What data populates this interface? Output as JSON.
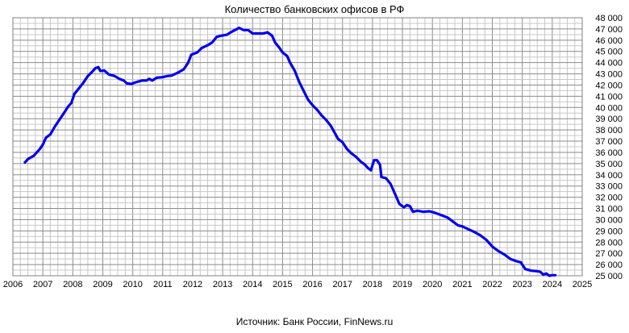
{
  "chart_data": {
    "type": "line",
    "title": "Количество банковских офисов в РФ",
    "source": "Источник: Банк России, FinNews.ru",
    "xlabel": "",
    "ylabel": "",
    "xlim": [
      2006,
      2025
    ],
    "ylim": [
      25000,
      48000
    ],
    "grid": true,
    "x_ticks": [
      "2006",
      "2007",
      "2008",
      "2009",
      "2010",
      "2011",
      "2012",
      "2013",
      "2014",
      "2015",
      "2016",
      "2017",
      "2018",
      "2019",
      "2020",
      "2021",
      "2022",
      "2023",
      "2024",
      "2025"
    ],
    "y_ticks": [
      "25 000",
      "26 000",
      "27 000",
      "28 000",
      "29 000",
      "30 000",
      "31 000",
      "32 000",
      "33 000",
      "34 000",
      "35 000",
      "36 000",
      "37 000",
      "38 000",
      "39 000",
      "40 000",
      "41 000",
      "42 000",
      "43 000",
      "44 000",
      "45 000",
      "46 000",
      "47 000",
      "48 000"
    ],
    "series": [
      {
        "color": "#0000ee",
        "points": [
          [
            2006.4,
            35100
          ],
          [
            2006.5,
            35400
          ],
          [
            2006.7,
            35700
          ],
          [
            2006.9,
            36300
          ],
          [
            2007.0,
            36700
          ],
          [
            2007.1,
            37300
          ],
          [
            2007.25,
            37600
          ],
          [
            2007.4,
            38300
          ],
          [
            2007.55,
            38900
          ],
          [
            2007.7,
            39500
          ],
          [
            2007.85,
            40100
          ],
          [
            2007.95,
            40400
          ],
          [
            2008.05,
            41200
          ],
          [
            2008.2,
            41700
          ],
          [
            2008.35,
            42200
          ],
          [
            2008.5,
            42800
          ],
          [
            2008.65,
            43200
          ],
          [
            2008.75,
            43500
          ],
          [
            2008.85,
            43600
          ],
          [
            2008.92,
            43250
          ],
          [
            2009.05,
            43300
          ],
          [
            2009.2,
            42950
          ],
          [
            2009.4,
            42800
          ],
          [
            2009.55,
            42550
          ],
          [
            2009.7,
            42400
          ],
          [
            2009.8,
            42150
          ],
          [
            2009.95,
            42100
          ],
          [
            2010.1,
            42250
          ],
          [
            2010.3,
            42400
          ],
          [
            2010.45,
            42400
          ],
          [
            2010.55,
            42550
          ],
          [
            2010.65,
            42400
          ],
          [
            2010.8,
            42650
          ],
          [
            2011.0,
            42700
          ],
          [
            2011.15,
            42800
          ],
          [
            2011.3,
            42850
          ],
          [
            2011.5,
            43100
          ],
          [
            2011.7,
            43400
          ],
          [
            2011.85,
            44000
          ],
          [
            2011.95,
            44700
          ],
          [
            2012.15,
            44900
          ],
          [
            2012.3,
            45300
          ],
          [
            2012.5,
            45550
          ],
          [
            2012.65,
            45800
          ],
          [
            2012.8,
            46300
          ],
          [
            2012.95,
            46400
          ],
          [
            2013.15,
            46500
          ],
          [
            2013.3,
            46750
          ],
          [
            2013.45,
            46950
          ],
          [
            2013.55,
            47100
          ],
          [
            2013.7,
            46900
          ],
          [
            2013.85,
            46900
          ],
          [
            2014.0,
            46600
          ],
          [
            2014.2,
            46600
          ],
          [
            2014.35,
            46600
          ],
          [
            2014.5,
            46700
          ],
          [
            2014.65,
            46400
          ],
          [
            2014.75,
            45800
          ],
          [
            2014.9,
            45300
          ],
          [
            2015.0,
            44900
          ],
          [
            2015.15,
            44600
          ],
          [
            2015.25,
            44000
          ],
          [
            2015.4,
            43300
          ],
          [
            2015.55,
            42300
          ],
          [
            2015.7,
            41500
          ],
          [
            2015.85,
            40700
          ],
          [
            2016.0,
            40200
          ],
          [
            2016.15,
            39800
          ],
          [
            2016.3,
            39300
          ],
          [
            2016.45,
            38900
          ],
          [
            2016.6,
            38400
          ],
          [
            2016.75,
            37700
          ],
          [
            2016.85,
            37200
          ],
          [
            2017.0,
            36900
          ],
          [
            2017.15,
            36300
          ],
          [
            2017.3,
            35900
          ],
          [
            2017.45,
            35600
          ],
          [
            2017.6,
            35200
          ],
          [
            2017.75,
            34900
          ],
          [
            2017.85,
            34600
          ],
          [
            2017.95,
            34400
          ],
          [
            2018.05,
            35300
          ],
          [
            2018.15,
            35300
          ],
          [
            2018.25,
            34900
          ],
          [
            2018.3,
            33800
          ],
          [
            2018.45,
            33700
          ],
          [
            2018.6,
            33200
          ],
          [
            2018.75,
            32300
          ],
          [
            2018.9,
            31400
          ],
          [
            2019.05,
            31100
          ],
          [
            2019.15,
            31300
          ],
          [
            2019.25,
            31200
          ],
          [
            2019.35,
            30700
          ],
          [
            2019.5,
            30800
          ],
          [
            2019.7,
            30700
          ],
          [
            2019.9,
            30750
          ],
          [
            2020.1,
            30600
          ],
          [
            2020.3,
            30400
          ],
          [
            2020.5,
            30200
          ],
          [
            2020.7,
            29800
          ],
          [
            2020.85,
            29500
          ],
          [
            2021.0,
            29400
          ],
          [
            2021.2,
            29150
          ],
          [
            2021.4,
            28900
          ],
          [
            2021.6,
            28600
          ],
          [
            2021.8,
            28200
          ],
          [
            2022.0,
            27600
          ],
          [
            2022.2,
            27200
          ],
          [
            2022.4,
            26900
          ],
          [
            2022.6,
            26500
          ],
          [
            2022.8,
            26300
          ],
          [
            2022.95,
            26200
          ],
          [
            2023.1,
            25600
          ],
          [
            2023.3,
            25450
          ],
          [
            2023.5,
            25400
          ],
          [
            2023.6,
            25350
          ],
          [
            2023.7,
            25100
          ],
          [
            2023.8,
            25200
          ],
          [
            2023.9,
            25000
          ],
          [
            2024.0,
            25050
          ],
          [
            2024.1,
            25050
          ]
        ]
      }
    ]
  }
}
